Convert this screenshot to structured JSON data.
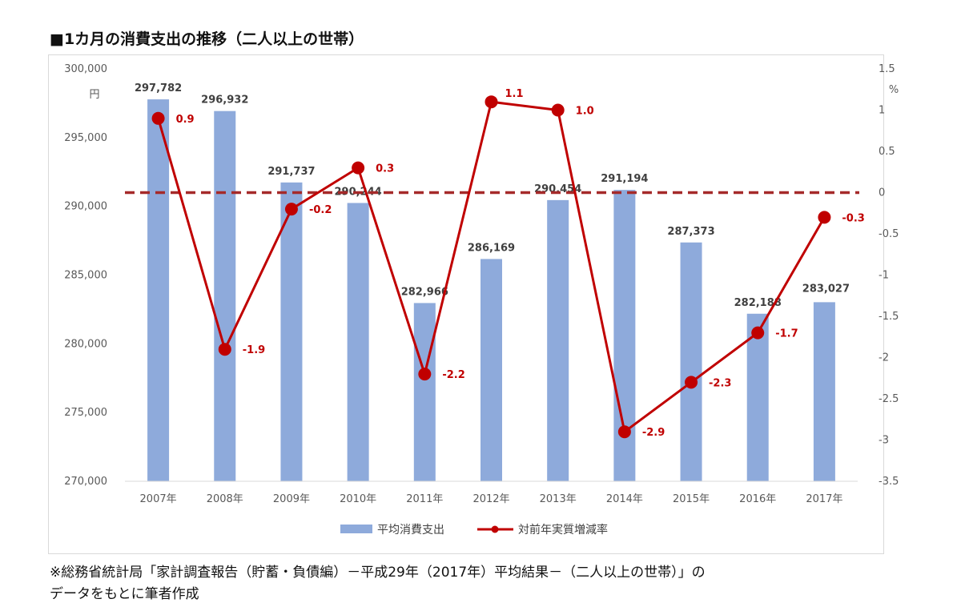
{
  "title": "■1カ月の消費支出の推移（二人以上の世帯）",
  "footnote": [
    "※総務省統計局「家計調査報告（貯蓄・負債編）－平成29年（2017年）平均結果－（二人以上の世帯）」の",
    "データをもとに筆者作成"
  ],
  "colors": {
    "bar": "#8eaadb",
    "line": "#c00000",
    "zero_line": "#a52a2a"
  },
  "chart_data": {
    "type": "bar",
    "categories": [
      "2007年",
      "2008年",
      "2009年",
      "2010年",
      "2011年",
      "2012年",
      "2013年",
      "2014年",
      "2015年",
      "2016年",
      "2017年"
    ],
    "series": [
      {
        "name": "平均消費支出",
        "type": "bar",
        "axis": "left",
        "values": [
          297782,
          296932,
          291737,
          290244,
          282966,
          286169,
          290454,
          291194,
          287373,
          282188,
          283027
        ]
      },
      {
        "name": "対前年実質増減率",
        "type": "line",
        "axis": "right",
        "values": [
          0.9,
          -1.9,
          -0.2,
          0.3,
          -2.2,
          1.1,
          1.0,
          -2.9,
          -2.3,
          -1.7,
          -0.3
        ]
      }
    ],
    "bar_labels": [
      "297,782",
      "296,932",
      "291,737",
      "290,244",
      "282,966",
      "286,169",
      "290,454",
      "291,194",
      "287,373",
      "282,188",
      "283,027"
    ],
    "line_labels": [
      "0.9",
      "-1.9",
      "-0.2",
      "0.3",
      "-2.2",
      "1.1",
      "1.0",
      "-2.9",
      "-2.3",
      "-1.7",
      "-0.3"
    ],
    "y_left": {
      "unit": "円",
      "ylim": [
        270000,
        300000
      ],
      "ticks": [
        270000,
        275000,
        280000,
        285000,
        290000,
        295000,
        300000
      ],
      "tick_labels": [
        "270,000",
        "275,000",
        "280,000",
        "285,000",
        "290,000",
        "295,000",
        "300,000"
      ]
    },
    "y_right": {
      "unit": "%",
      "ylim": [
        -3.5,
        1.5
      ],
      "ticks": [
        -3.5,
        -3,
        -2.5,
        -2,
        -1.5,
        -1,
        -0.5,
        0,
        0.5,
        1,
        1.5
      ],
      "tick_labels": [
        "-3.5",
        "-3",
        "-2.5",
        "-2",
        "-1.5",
        "-1",
        "-0.5",
        "0",
        "0.5",
        "1",
        "1.5"
      ]
    },
    "reference_line": {
      "axis": "right",
      "value": 0,
      "style": "dashed"
    },
    "grid": false,
    "legend": "bottom"
  }
}
